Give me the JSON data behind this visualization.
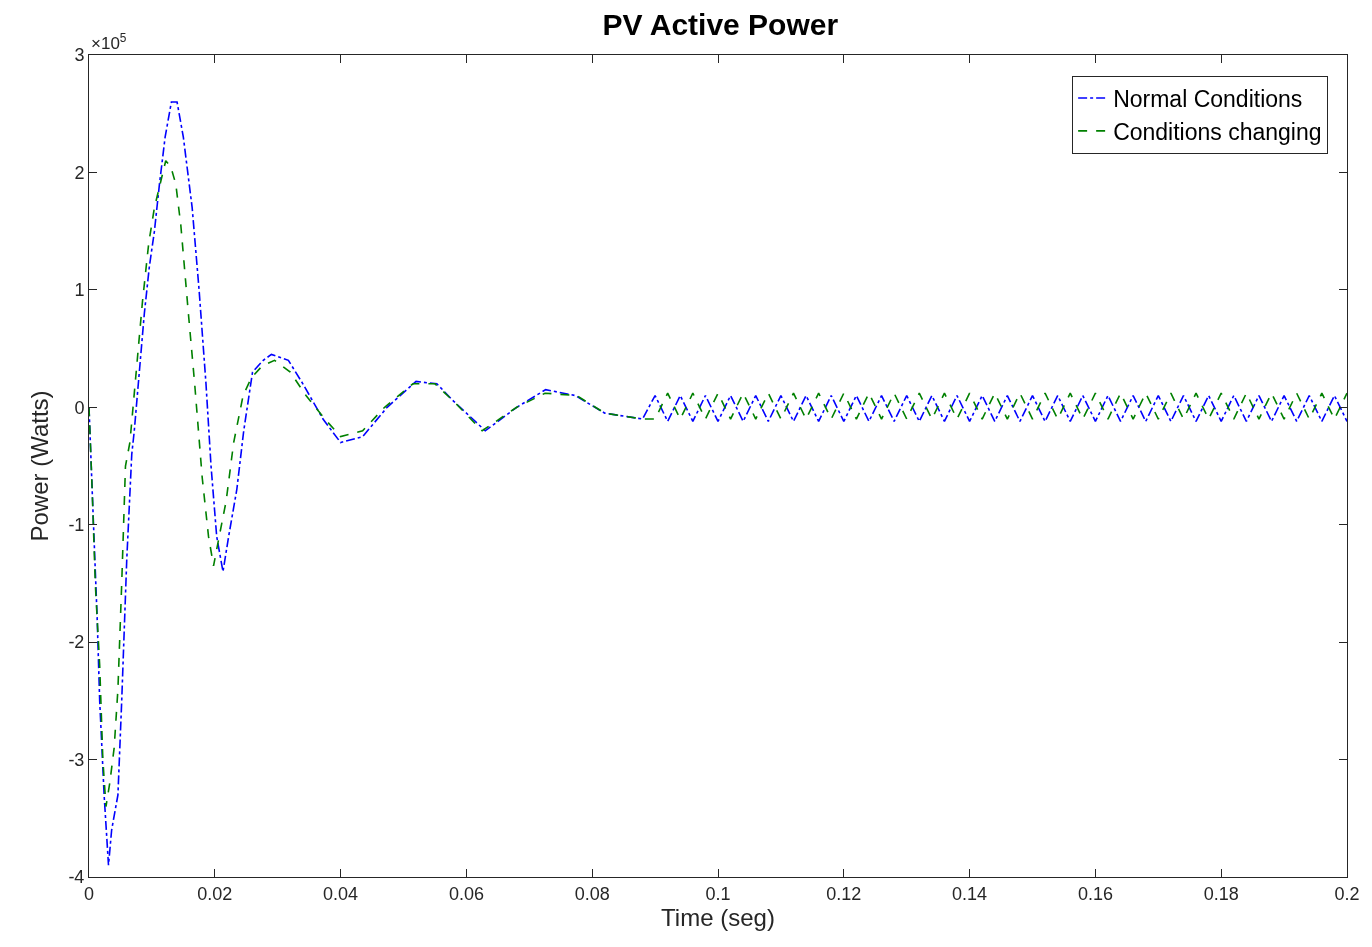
{
  "chart_data": {
    "type": "line",
    "title": "PV Active Power",
    "xlabel": "Time (seg)",
    "ylabel": "Power (Watts)",
    "annotations": [
      "×10$^{5}$"
    ],
    "xlim": [
      0,
      0.2
    ],
    "xticks": [
      0,
      0.02,
      0.04,
      0.06,
      0.08,
      0.1,
      0.12,
      0.14,
      0.16,
      0.18,
      0.2
    ],
    "ylim": [
      -4,
      3
    ],
    "yticks": [
      -4,
      -3,
      -2,
      -1,
      0,
      1,
      2,
      3
    ],
    "legend": "top right",
    "marker": "none",
    "series": [
      {
        "name": "Normal Conditions",
        "color": "#0000ff",
        "line_style": "dashdot",
        "x": [
          0,
          0.0005,
          0.0013,
          0.0017,
          0.0024,
          0.0031,
          0.0036,
          0.0046,
          0.0052,
          0.006,
          0.0068,
          0.0072,
          0.008,
          0.0088,
          0.0096,
          0.0104,
          0.0112,
          0.0121,
          0.0131,
          0.014,
          0.015,
          0.0164,
          0.0175,
          0.0186,
          0.0194,
          0.0203,
          0.0213,
          0.0222,
          0.0235,
          0.0246,
          0.026,
          0.0277,
          0.029,
          0.0317,
          0.034,
          0.0372,
          0.04,
          0.0435,
          0.0474,
          0.052,
          0.0553,
          0.058,
          0.063,
          0.068,
          0.0726,
          0.0773,
          0.082,
          0.088,
          0.09,
          0.092,
          0.094,
          0.096,
          0.098,
          0.1,
          0.102,
          0.104,
          0.106,
          0.108,
          0.11,
          0.112,
          0.114,
          0.116,
          0.118,
          0.12,
          0.122,
          0.124,
          0.126,
          0.128,
          0.13,
          0.132,
          0.134,
          0.136,
          0.138,
          0.14,
          0.142,
          0.144,
          0.146,
          0.148,
          0.15,
          0.152,
          0.154,
          0.156,
          0.158,
          0.16,
          0.162,
          0.164,
          0.166,
          0.168,
          0.17,
          0.172,
          0.174,
          0.176,
          0.178,
          0.18,
          0.182,
          0.184,
          0.186,
          0.188,
          0.19,
          0.192,
          0.194,
          0.196,
          0.198,
          0.2
        ],
        "values": [
          0,
          -0.7,
          -1.8,
          -2.5,
          -3.3,
          -3.9,
          -3.6,
          -3.3,
          -2.5,
          -1.3,
          -0.4,
          -0.2,
          0.3,
          0.8,
          1.2,
          1.5,
          1.9,
          2.3,
          2.6,
          2.6,
          2.3,
          1.7,
          1.0,
          0.2,
          -0.5,
          -1.1,
          -1.4,
          -1.1,
          -0.7,
          -0.2,
          0.3,
          0.4,
          0.45,
          0.4,
          0.2,
          -0.1,
          -0.3,
          -0.25,
          0.0,
          0.22,
          0.2,
          0.05,
          -0.2,
          0.0,
          0.15,
          0.1,
          -0.05,
          -0.1,
          0.1,
          -0.12,
          0.1,
          -0.12,
          0.1,
          -0.12,
          0.1,
          -0.12,
          0.1,
          -0.12,
          0.1,
          -0.12,
          0.1,
          -0.12,
          0.1,
          -0.12,
          0.1,
          -0.12,
          0.1,
          -0.12,
          0.1,
          -0.12,
          0.1,
          -0.12,
          0.1,
          -0.12,
          0.1,
          -0.12,
          0.1,
          -0.12,
          0.1,
          -0.12,
          0.1,
          -0.12,
          0.1,
          -0.12,
          0.1,
          -0.12,
          0.1,
          -0.12,
          0.1,
          -0.12,
          0.1,
          -0.12,
          0.1,
          -0.12,
          0.1,
          -0.12,
          0.1,
          -0.12,
          0.1,
          -0.12,
          0.1,
          -0.12,
          0.1,
          -0.12
        ]
      },
      {
        "name": "Conditions changing",
        "color": "#008000",
        "line_style": "dashed",
        "x": [
          0,
          0.0005,
          0.001,
          0.0017,
          0.0022,
          0.0027,
          0.0033,
          0.004,
          0.0046,
          0.0052,
          0.0058,
          0.0065,
          0.0075,
          0.0085,
          0.0095,
          0.0104,
          0.0113,
          0.0122,
          0.013,
          0.0138,
          0.0146,
          0.0158,
          0.0168,
          0.018,
          0.019,
          0.0198,
          0.0207,
          0.0218,
          0.023,
          0.0245,
          0.0258,
          0.0275,
          0.0295,
          0.032,
          0.0345,
          0.0375,
          0.04,
          0.0435,
          0.047,
          0.0515,
          0.055,
          0.058,
          0.0625,
          0.068,
          0.0725,
          0.0775,
          0.082,
          0.088,
          0.09,
          0.092,
          0.094,
          0.096,
          0.098,
          0.1,
          0.102,
          0.104,
          0.106,
          0.108,
          0.11,
          0.112,
          0.114,
          0.116,
          0.118,
          0.12,
          0.122,
          0.124,
          0.126,
          0.128,
          0.13,
          0.132,
          0.134,
          0.136,
          0.138,
          0.14,
          0.142,
          0.144,
          0.146,
          0.148,
          0.15,
          0.152,
          0.154,
          0.156,
          0.158,
          0.16,
          0.162,
          0.164,
          0.166,
          0.168,
          0.17,
          0.172,
          0.174,
          0.176,
          0.178,
          0.18,
          0.182,
          0.184,
          0.186,
          0.188,
          0.19,
          0.192,
          0.194,
          0.196,
          0.198,
          0.2
        ],
        "values": [
          0,
          -0.7,
          -1.5,
          -2.2,
          -3.0,
          -3.4,
          -3.2,
          -2.9,
          -2.4,
          -1.5,
          -0.5,
          -0.3,
          0.3,
          0.9,
          1.4,
          1.7,
          1.9,
          2.1,
          2.05,
          1.9,
          1.55,
          0.8,
          0.2,
          -0.6,
          -1.1,
          -1.35,
          -1.1,
          -0.8,
          -0.3,
          0.1,
          0.25,
          0.35,
          0.4,
          0.3,
          0.1,
          -0.1,
          -0.25,
          -0.2,
          0.0,
          0.2,
          0.2,
          0.05,
          -0.2,
          0.0,
          0.12,
          0.1,
          -0.05,
          -0.1,
          -0.1,
          0.12,
          -0.1,
          0.12,
          -0.1,
          0.12,
          -0.1,
          0.12,
          -0.1,
          0.12,
          -0.1,
          0.12,
          -0.1,
          0.12,
          -0.1,
          0.12,
          -0.1,
          0.12,
          -0.1,
          0.12,
          -0.1,
          0.12,
          -0.1,
          0.12,
          -0.1,
          0.12,
          -0.1,
          0.12,
          -0.1,
          0.12,
          -0.1,
          0.12,
          -0.1,
          0.12,
          -0.1,
          0.12,
          -0.1,
          0.12,
          -0.1,
          0.12,
          -0.1,
          0.12,
          -0.1,
          0.12,
          -0.1,
          0.12,
          -0.1,
          0.12,
          -0.1,
          0.12,
          -0.1,
          0.12,
          -0.1,
          0.12,
          -0.1,
          0.12
        ]
      }
    ]
  }
}
